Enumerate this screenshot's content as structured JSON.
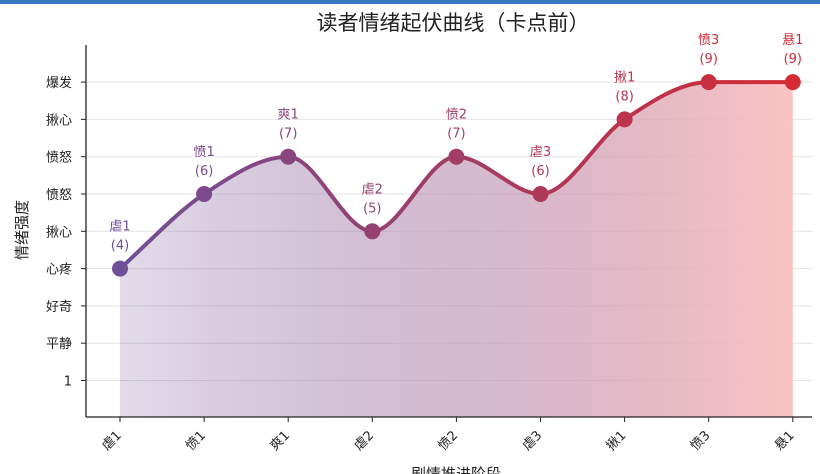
{
  "chart_data": {
    "type": "line",
    "title": "读者情绪起伏曲线（卡点前）",
    "xlabel": "剧情推进阶段",
    "ylabel": "情绪强度",
    "categories": [
      "虐1",
      "愤1",
      "爽1",
      "虐2",
      "愤2",
      "虐3",
      "揪1",
      "愤3",
      "悬1"
    ],
    "y_tick_values": [
      1,
      2,
      3,
      4,
      5,
      6,
      7,
      8,
      9
    ],
    "y_tick_labels": [
      "1",
      "平静",
      "好奇",
      "心疼",
      "揪心",
      "愤怒",
      "愤怒",
      "揪心",
      "爆发"
    ],
    "ylim": [
      0,
      10
    ],
    "grid": true,
    "series": [
      {
        "values": [
          4,
          6,
          7,
          5,
          7,
          6,
          8,
          9,
          9
        ],
        "point_labels": [
          "虐1",
          "愤1",
          "爽1",
          "虐2",
          "愤2",
          "虐3",
          "揪1",
          "愤3",
          "悬1"
        ]
      }
    ],
    "colors": {
      "start": "#6f4f96",
      "end": "#d42a33",
      "fill_end": "#fbc0c0",
      "top_bar": "#3578c2"
    }
  }
}
